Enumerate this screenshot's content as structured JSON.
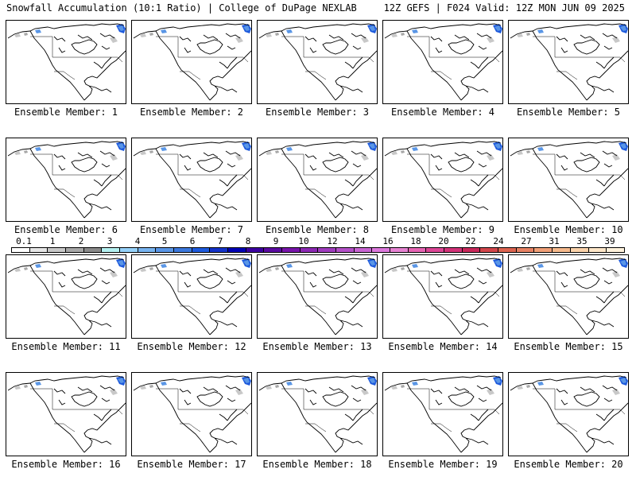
{
  "header": {
    "left_title": "Snowfall Accumulation (10:1 Ratio) | College of DuPage NEXLAB",
    "right_title": "12Z GEFS | F024 Valid: 12Z MON JUN 09 2025"
  },
  "panels": [
    {
      "label": "Ensemble Member: 1"
    },
    {
      "label": "Ensemble Member: 2"
    },
    {
      "label": "Ensemble Member: 3"
    },
    {
      "label": "Ensemble Member: 4"
    },
    {
      "label": "Ensemble Member: 5"
    },
    {
      "label": "Ensemble Member: 6"
    },
    {
      "label": "Ensemble Member: 7"
    },
    {
      "label": "Ensemble Member: 8"
    },
    {
      "label": "Ensemble Member: 9"
    },
    {
      "label": "Ensemble Member: 10"
    },
    {
      "label": "Ensemble Member: 11"
    },
    {
      "label": "Ensemble Member: 12"
    },
    {
      "label": "Ensemble Member: 13"
    },
    {
      "label": "Ensemble Member: 14"
    },
    {
      "label": "Ensemble Member: 15"
    },
    {
      "label": "Ensemble Member: 16"
    },
    {
      "label": "Ensemble Member: 17"
    },
    {
      "label": "Ensemble Member: 18"
    },
    {
      "label": "Ensemble Member: 19"
    },
    {
      "label": "Ensemble Member: 20"
    }
  ],
  "colorbar": {
    "ticks": [
      "0.1",
      "1",
      "2",
      "3",
      "4",
      "5",
      "6",
      "7",
      "8",
      "9",
      "10",
      "12",
      "14",
      "16",
      "18",
      "20",
      "22",
      "24",
      "27",
      "31",
      "35",
      "39"
    ],
    "colors": [
      "#ffffff",
      "#e6e6e6",
      "#c8c8c8",
      "#a8a8a8",
      "#8a8a8a",
      "#b4f0f0",
      "#96d2fa",
      "#78b4f0",
      "#5a96e6",
      "#3c78dc",
      "#1e5adc",
      "#1432c8",
      "#0000b4",
      "#3c00a0",
      "#5a0aa0",
      "#7814aa",
      "#8c28b4",
      "#a03cbe",
      "#b450c8",
      "#c864d2",
      "#dc78dc",
      "#e682d2",
      "#e664b4",
      "#dc4696",
      "#d23278",
      "#c8285a",
      "#d2464b",
      "#dc6450",
      "#e68264",
      "#f0a078",
      "#f5b98c",
      "#fad2aa",
      "#fde6c8",
      "#fff2dc"
    ]
  },
  "map": {
    "land_color": "#ffffff",
    "coast_color": "#000000",
    "snow_colors": [
      "#c8c8c8",
      "#a8a8a8",
      "#5a96e6",
      "#1e5adc"
    ]
  }
}
